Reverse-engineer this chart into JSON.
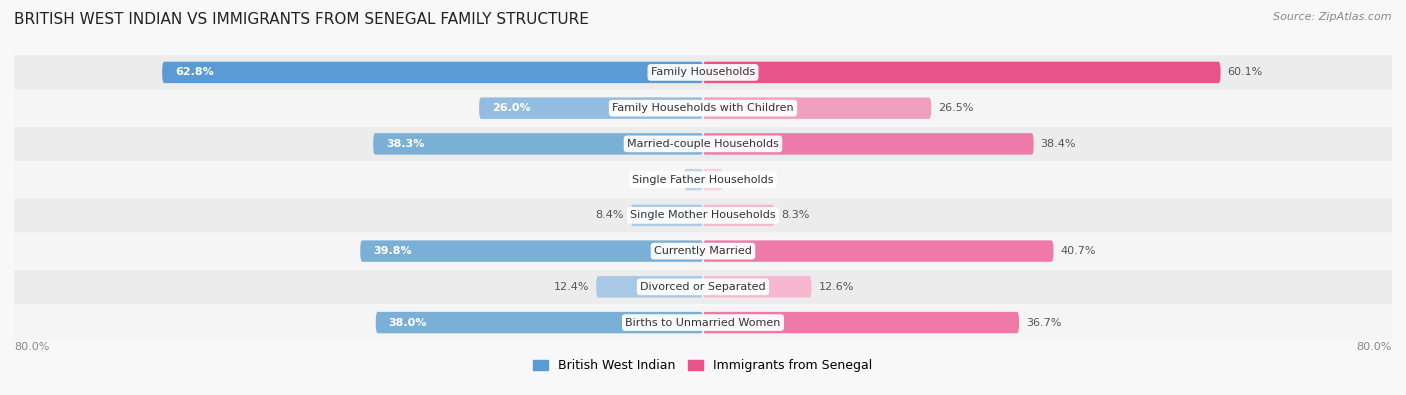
{
  "title": "BRITISH WEST INDIAN VS IMMIGRANTS FROM SENEGAL FAMILY STRUCTURE",
  "source": "Source: ZipAtlas.com",
  "categories": [
    "Family Households",
    "Family Households with Children",
    "Married-couple Households",
    "Single Father Households",
    "Single Mother Households",
    "Currently Married",
    "Divorced or Separated",
    "Births to Unmarried Women"
  ],
  "left_values": [
    62.8,
    26.0,
    38.3,
    2.2,
    8.4,
    39.8,
    12.4,
    38.0
  ],
  "right_values": [
    60.1,
    26.5,
    38.4,
    2.3,
    8.3,
    40.7,
    12.6,
    36.7
  ],
  "left_colors": [
    "#5b9bd5",
    "#92bce0",
    "#7aafd6",
    "#bed4ea",
    "#adc9e5",
    "#7aafd6",
    "#a8c8e5",
    "#7aafd6"
  ],
  "right_colors": [
    "#e8538a",
    "#f0a0bf",
    "#ee7aaa",
    "#f9d0e2",
    "#f5b8d0",
    "#ee7aaa",
    "#f5b8d0",
    "#ee7aaa"
  ],
  "left_label": "British West Indian",
  "right_label": "Immigrants from Senegal",
  "xlim": 80.0,
  "bar_height": 0.6,
  "row_bg_color1": "#ececec",
  "row_bg_color2": "#f5f5f5",
  "fig_bg": "#f8f8f8",
  "title_fontsize": 11,
  "label_fontsize": 8,
  "value_fontsize": 8,
  "source_fontsize": 8,
  "legend_fontsize": 9,
  "axis_label": "80.0%",
  "white_text_threshold": 15
}
